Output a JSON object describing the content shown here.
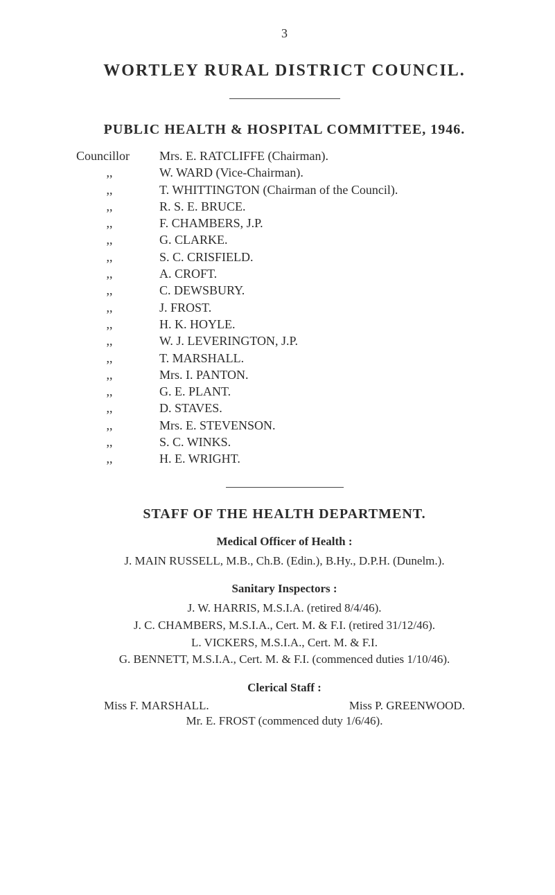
{
  "page_number": "3",
  "title": "WORTLEY RURAL DISTRICT COUNCIL.",
  "committee_heading": "PUBLIC HEALTH & HOSPITAL COMMITTEE, 1946.",
  "councillor_label": "Councillor",
  "ditto_mark": ",,",
  "members": [
    "Mrs. E. RATCLIFFE (Chairman).",
    "W. WARD (Vice-Chairman).",
    "T. WHITTINGTON (Chairman of the Council).",
    "R. S. E. BRUCE.",
    "F. CHAMBERS, J.P.",
    "G. CLARKE.",
    "S. C. CRISFIELD.",
    "A. CROFT.",
    "C. DEWSBURY.",
    "J. FROST.",
    "H. K. HOYLE.",
    "W. J. LEVERINGTON, J.P.",
    "T. MARSHALL.",
    "Mrs. I. PANTON.",
    "G. E. PLANT.",
    "D. STAVES.",
    "Mrs. E. STEVENSON.",
    "S. C. WINKS.",
    "H. E. WRIGHT."
  ],
  "staff_heading": "STAFF OF THE HEALTH DEPARTMENT.",
  "moh_label": "Medical Officer of Health :",
  "moh_line": "J. MAIN RUSSELL, M.B., Ch.B. (Edin.), B.Hy., D.P.H. (Dunelm.).",
  "inspectors_label": "Sanitary Inspectors :",
  "inspectors": [
    "J. W. HARRIS, M.S.I.A. (retired 8/4/46).",
    "J. C. CHAMBERS, M.S.I.A., Cert. M. & F.I. (retired 31/12/46).",
    "L. VICKERS, M.S.I.A., Cert. M. & F.I.",
    "G. BENNETT, M.S.I.A., Cert. M. & F.I. (commenced duties 1/10/46)."
  ],
  "clerical_label": "Clerical Staff :",
  "clerical_left": "Miss F. MARSHALL.",
  "clerical_right": "Miss P. GREENWOOD.",
  "clerical_bottom": "Mr. E. FROST (commenced duty 1/6/46)."
}
